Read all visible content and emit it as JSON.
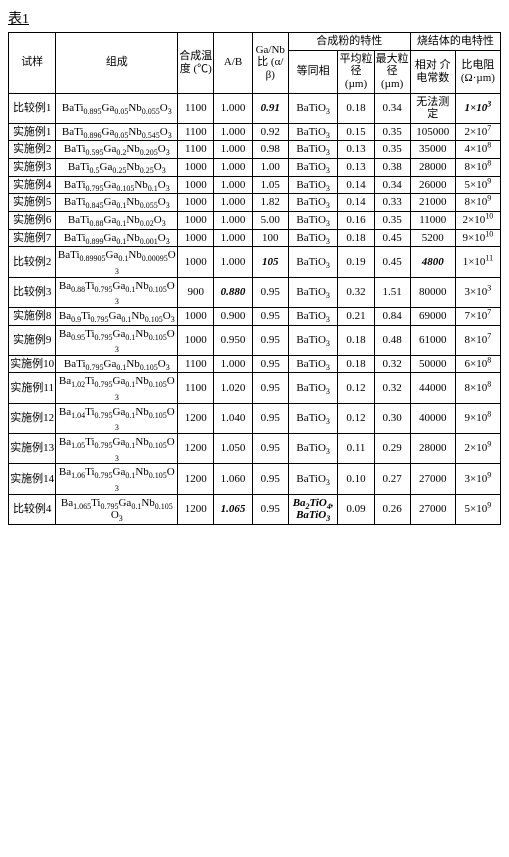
{
  "caption": "表1",
  "headers": {
    "sample": "试样",
    "composition": "组成",
    "temp": "合成温度 (℃)",
    "ab": "A/B",
    "ganb": "Ga/Nb比 (α/β)",
    "powder_group": "合成粉的特性",
    "phase": "等同相",
    "avg": "平均粒径 (µm)",
    "max": "最大粒径 (µm)",
    "sinter_group": "烧结体的电特性",
    "diel": "相对 介电常数",
    "res": "比电阻 (Ω·µm)"
  },
  "rows": [
    {
      "sample": "比较例1",
      "comp": "BaTi<sub>0.895</sub>Ga<sub>0.05</sub>Nb<sub>0.055</sub>O<sub>3</sub>",
      "temp": "1100",
      "ab": "1.000",
      "ganb": "0.91",
      "ganb_bi": true,
      "phase": "BaTiO<sub>3</sub>",
      "avg": "0.18",
      "max": "0.34",
      "diel": "无法测定",
      "res": "1×10<sup>3</sup>",
      "res_bi": true
    },
    {
      "sample": "实施例1",
      "comp": "BaTi<sub>0.896</sub>Ga<sub>0.05</sub>Nb<sub>0.545</sub>O<sub>3</sub>",
      "temp": "1100",
      "ab": "1.000",
      "ganb": "0.92",
      "phase": "BaTiO<sub>3</sub>",
      "avg": "0.15",
      "max": "0.35",
      "diel": "105000",
      "res": "2×10<sup>7</sup>"
    },
    {
      "sample": "实施例2",
      "comp": "BaTi<sub>0.595</sub>Ga<sub>0.2</sub>Nb<sub>0.205</sub>O<sub>3</sub>",
      "temp": "1100",
      "ab": "1.000",
      "ganb": "0.98",
      "phase": "BaTiO<sub>3</sub>",
      "avg": "0.13",
      "max": "0.35",
      "diel": "35000",
      "res": "4×10<sup>8</sup>"
    },
    {
      "sample": "实施例3",
      "comp": "BaTi<sub>0.5</sub>Ga<sub>0.25</sub>Nb<sub>0.25</sub>O<sub>3</sub>",
      "temp": "1000",
      "ab": "1.000",
      "ganb": "1.00",
      "phase": "BaTiO<sub>3</sub>",
      "avg": "0.13",
      "max": "0.38",
      "diel": "28000",
      "res": "8×10<sup>8</sup>"
    },
    {
      "sample": "实施例4",
      "comp": "BaTi<sub>0.795</sub>Ga<sub>0.105</sub>Nb<sub>0.1</sub>O<sub>3</sub>",
      "temp": "1000",
      "ab": "1.000",
      "ganb": "1.05",
      "phase": "BaTiO<sub>3</sub>",
      "avg": "0.14",
      "max": "0.34",
      "diel": "26000",
      "res": "5×10<sup>9</sup>"
    },
    {
      "sample": "实施例5",
      "comp": "BaTi<sub>0.845</sub>Ga<sub>0.1</sub>Nb<sub>0.055</sub>O<sub>3</sub>",
      "temp": "1000",
      "ab": "1.000",
      "ganb": "1.82",
      "phase": "BaTiO<sub>3</sub>",
      "avg": "0.14",
      "max": "0.33",
      "diel": "21000",
      "res": "8×10<sup>9</sup>"
    },
    {
      "sample": "实施例6",
      "comp": "BaTi<sub>0.88</sub>Ga<sub>0.1</sub>Nb<sub>0.02</sub>O<sub>3</sub>",
      "temp": "1000",
      "ab": "1.000",
      "ganb": "5.00",
      "phase": "BaTiO<sub>3</sub>",
      "avg": "0.16",
      "max": "0.35",
      "diel": "11000",
      "res": "2×10<sup>10</sup>"
    },
    {
      "sample": "实施例7",
      "comp": "BaTi<sub>0.899</sub>Ga<sub>0.1</sub>Nb<sub>0.001</sub>O<sub>3</sub>",
      "temp": "1000",
      "ab": "1.000",
      "ganb": "100",
      "phase": "BaTiO<sub>3</sub>",
      "avg": "0.18",
      "max": "0.45",
      "diel": "5200",
      "res": "9×10<sup>10</sup>"
    },
    {
      "sample": "比较例2",
      "comp": "BaTi<sub>0.89905</sub>Ga<sub>0.1</sub>Nb<sub>0.00095</sub>O<sub>3</sub>",
      "temp": "1000",
      "ab": "1.000",
      "ganb": "105",
      "ganb_bi": true,
      "phase": "BaTiO<sub>3</sub>",
      "avg": "0.19",
      "max": "0.45",
      "diel": "4800",
      "diel_bi": true,
      "res": "1×10<sup>11</sup>"
    },
    {
      "sample": "比较例3",
      "comp": "Ba<sub>0.88</sub>Ti<sub>0.795</sub>Ga<sub>0.1</sub>Nb<sub>0.105</sub>O<sub>3</sub>",
      "temp": "900",
      "ab": "0.880",
      "ab_bi": true,
      "ganb": "0.95",
      "phase": "BaTiO<sub>3</sub>",
      "avg": "0.32",
      "max": "1.51",
      "diel": "80000",
      "res": "3×10<sup>3</sup>"
    },
    {
      "sample": "实施例8",
      "comp": "Ba<sub>0.9</sub>Ti<sub>0.795</sub>Ga<sub>0.1</sub>Nb<sub>0.105</sub>O<sub>3</sub>",
      "temp": "1000",
      "ab": "0.900",
      "ganb": "0.95",
      "phase": "BaTiO<sub>3</sub>",
      "avg": "0.21",
      "max": "0.84",
      "diel": "69000",
      "res": "7×10<sup>7</sup>"
    },
    {
      "sample": "实施例9",
      "comp": "Ba<sub>0.95</sub>Ti<sub>0.795</sub>Ga<sub>0.1</sub>Nb<sub>0.105</sub>O<sub>3</sub>",
      "temp": "1000",
      "ab": "0.950",
      "ganb": "0.95",
      "phase": "BaTiO<sub>3</sub>",
      "avg": "0.18",
      "max": "0.48",
      "diel": "61000",
      "res": "8×10<sup>7</sup>"
    },
    {
      "sample": "实施例10",
      "comp": "BaTi<sub>0.795</sub>Ga<sub>0.1</sub>Nb<sub>0.105</sub>O<sub>3</sub>",
      "temp": "1100",
      "ab": "1.000",
      "ganb": "0.95",
      "phase": "BaTiO<sub>3</sub>",
      "avg": "0.18",
      "max": "0.32",
      "diel": "50000",
      "res": "6×10<sup>8</sup>"
    },
    {
      "sample": "实施例11",
      "comp": "Ba<sub>1.02</sub>Ti<sub>0.795</sub>Ga<sub>0.1</sub>Nb<sub>0.105</sub>O<sub>3</sub>",
      "temp": "1100",
      "ab": "1.020",
      "ganb": "0.95",
      "phase": "BaTiO<sub>3</sub>",
      "avg": "0.12",
      "max": "0.32",
      "diel": "44000",
      "res": "8×10<sup>8</sup>"
    },
    {
      "sample": "实施例12",
      "comp": "Ba<sub>1.04</sub>Ti<sub>0.795</sub>Ga<sub>0.1</sub>Nb<sub>0.105</sub>O<sub>3</sub>",
      "temp": "1200",
      "ab": "1.040",
      "ganb": "0.95",
      "phase": "BaTiO<sub>3</sub>",
      "avg": "0.12",
      "max": "0.30",
      "diel": "40000",
      "res": "9×10<sup>8</sup>"
    },
    {
      "sample": "实施例13",
      "comp": "Ba<sub>1.05</sub>Ti<sub>0.795</sub>Ga<sub>0.1</sub>Nb<sub>0.105</sub>O<sub>3</sub>",
      "temp": "1200",
      "ab": "1.050",
      "ganb": "0.95",
      "phase": "BaTiO<sub>3</sub>",
      "avg": "0.11",
      "max": "0.29",
      "diel": "28000",
      "res": "2×10<sup>9</sup>"
    },
    {
      "sample": "实施例14",
      "comp": "Ba<sub>1.06</sub>Ti<sub>0.795</sub>Ga<sub>0.1</sub>Nb<sub>0.105</sub>O<sub>3</sub>",
      "temp": "1200",
      "ab": "1.060",
      "ganb": "0.95",
      "phase": "BaTiO<sub>3</sub>",
      "avg": "0.10",
      "max": "0.27",
      "diel": "27000",
      "res": "3×10<sup>9</sup>"
    },
    {
      "sample": "比较例4",
      "comp": "Ba<sub>1.065</sub>Ti<sub>0.795</sub>Ga<sub>0.1</sub>Nb<sub>0.105</sub>O<sub>3</sub>",
      "temp": "1200",
      "ab": "1.065",
      "ab_bi": true,
      "ganb": "0.95",
      "phase": "Ba<sub>2</sub>TiO<sub>4</sub>,BaTiO<sub>3</sub>",
      "phase_bi": true,
      "avg": "0.09",
      "max": "0.26",
      "diel": "27000",
      "res": "5×10<sup>9</sup>"
    }
  ]
}
